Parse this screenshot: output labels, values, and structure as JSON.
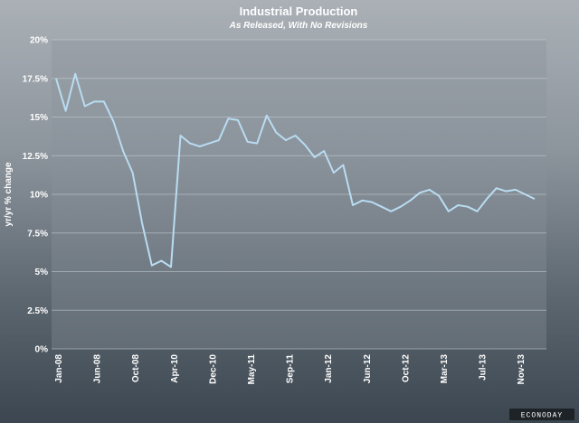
{
  "chart_data": {
    "type": "line",
    "title": "Industrial Production",
    "subtitle": "As Released, With No Revisions",
    "ylabel": "yr/yr % change",
    "ylim": [
      0,
      20
    ],
    "yticks": [
      0,
      2.5,
      5,
      7.5,
      10,
      12.5,
      15,
      17.5,
      20
    ],
    "ytick_labels": [
      "0%",
      "2.5%",
      "5%",
      "7.5%",
      "10%",
      "12.5%",
      "15%",
      "17.5%",
      "20%"
    ],
    "xtick_labels": [
      "Jan-08",
      "Jun-08",
      "Oct-08",
      "Apr-10",
      "Dec-10",
      "May-11",
      "Sep-11",
      "Jan-12",
      "Jun-12",
      "Oct-12",
      "Mar-13",
      "Jul-13",
      "Nov-13"
    ],
    "grid": true,
    "series": [
      {
        "color": "#b9dcf2",
        "values": [
          17.5,
          15.4,
          17.8,
          15.7,
          16.0,
          16.0,
          14.7,
          12.8,
          11.4,
          8.1,
          5.4,
          5.7,
          5.3,
          13.8,
          13.3,
          13.1,
          13.3,
          13.5,
          14.9,
          14.8,
          13.4,
          13.3,
          15.1,
          14.0,
          13.5,
          13.8,
          13.2,
          12.4,
          12.8,
          11.4,
          11.9,
          9.3,
          9.6,
          9.5,
          9.2,
          8.9,
          9.2,
          9.6,
          10.1,
          10.3,
          9.9,
          8.9,
          9.3,
          9.2,
          8.9,
          9.7,
          10.4,
          10.2,
          10.3,
          10.0,
          9.7
        ]
      }
    ]
  },
  "watermark": "ECONODAY"
}
